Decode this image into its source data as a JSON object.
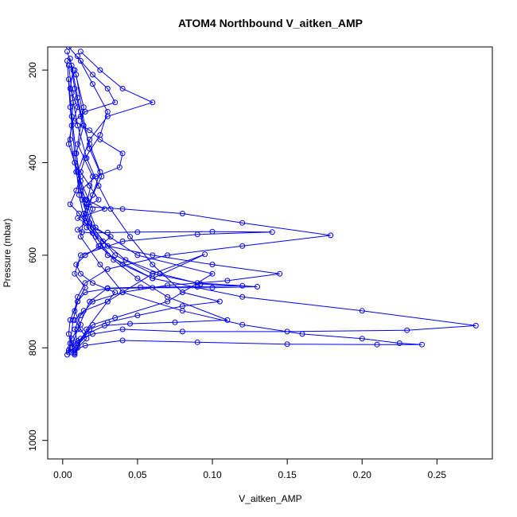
{
  "chart_data": {
    "type": "line",
    "title": "ATOM4 Northbound V_aitken_AMP",
    "xlabel": "V_aitken_AMP",
    "ylabel": "Pressure (mbar)",
    "xlim": [
      -0.01,
      0.287
    ],
    "ylim": [
      1040,
      150
    ],
    "y_reversed": true,
    "xticks": [
      0.0,
      0.05,
      0.1,
      0.15,
      0.2,
      0.25
    ],
    "xtick_labels": [
      "0.00",
      "0.05",
      "0.10",
      "0.15",
      "0.20",
      "0.25"
    ],
    "yticks": [
      200,
      400,
      600,
      800,
      1000
    ],
    "ytick_labels": [
      "200",
      "400",
      "600",
      "800",
      "1000"
    ],
    "grid": false,
    "legend": "none",
    "series_color": "#0000ff",
    "series": [
      {
        "x": [
          0.004,
          0.012,
          0.02,
          0.03,
          0.035,
          0.015,
          0.008,
          0.018,
          0.025,
          0.04,
          0.038,
          0.022,
          0.012,
          0.016,
          0.028,
          0.01,
          0.02,
          0.032,
          0.025,
          0.015,
          0.009,
          0.012,
          0.02,
          0.035,
          0.03,
          0.014,
          0.008,
          0.012,
          0.016,
          0.01,
          0.008
        ],
        "y": [
          150,
          180,
          210,
          240,
          270,
          290,
          310,
          330,
          350,
          380,
          410,
          430,
          460,
          480,
          500,
          520,
          540,
          560,
          580,
          600,
          620,
          640,
          660,
          680,
          700,
          720,
          740,
          760,
          780,
          800,
          815
        ]
      },
      {
        "x": [
          0.003,
          0.007,
          0.005,
          0.01,
          0.006,
          0.004,
          0.008,
          0.012,
          0.009,
          0.005,
          0.011,
          0.015,
          0.01,
          0.013,
          0.02,
          0.03,
          0.05,
          0.1,
          0.14,
          0.09,
          0.04,
          0.012,
          0.008,
          0.015,
          0.01,
          0.005,
          0.004,
          0.006,
          0.004,
          0.003
        ],
        "y": [
          160,
          200,
          240,
          280,
          320,
          360,
          400,
          430,
          460,
          490,
          510,
          530,
          545,
          550,
          552,
          551,
          550,
          549,
          550,
          555,
          570,
          600,
          640,
          670,
          700,
          740,
          770,
          790,
          805,
          815
        ]
      },
      {
        "x": [
          0.01,
          0.02,
          0.03,
          0.025,
          0.015,
          0.012,
          0.018,
          0.024,
          0.016,
          0.04,
          0.08,
          0.12,
          0.179,
          0.12,
          0.07,
          0.03,
          0.015,
          0.01,
          0.008,
          0.012,
          0.006,
          0.005,
          0.004
        ],
        "y": [
          170,
          230,
          290,
          340,
          390,
          420,
          450,
          480,
          495,
          500,
          510,
          530,
          557,
          580,
          600,
          630,
          660,
          690,
          720,
          750,
          780,
          800,
          810
        ]
      },
      {
        "x": [
          0.006,
          0.01,
          0.014,
          0.009,
          0.012,
          0.02,
          0.016,
          0.03,
          0.06,
          0.1,
          0.145,
          0.11,
          0.07,
          0.04,
          0.02,
          0.012,
          0.008,
          0.01,
          0.006
        ],
        "y": [
          190,
          260,
          320,
          380,
          440,
          500,
          540,
          580,
          600,
          620,
          640,
          655,
          665,
          680,
          700,
          730,
          760,
          790,
          810
        ]
      },
      {
        "x": [
          0.005,
          0.008,
          0.012,
          0.018,
          0.025,
          0.02,
          0.015,
          0.03,
          0.06,
          0.12,
          0.2,
          0.276,
          0.23,
          0.15,
          0.08,
          0.04,
          0.02,
          0.01,
          0.006
        ],
        "y": [
          175,
          240,
          300,
          360,
          420,
          470,
          520,
          600,
          650,
          690,
          720,
          752,
          762,
          765,
          765,
          760,
          770,
          785,
          800
        ]
      },
      {
        "x": [
          0.008,
          0.014,
          0.01,
          0.02,
          0.016,
          0.012,
          0.025,
          0.04,
          0.08,
          0.12,
          0.16,
          0.2,
          0.225,
          0.24,
          0.21,
          0.15,
          0.09,
          0.04,
          0.015,
          0.008
        ],
        "y": [
          200,
          280,
          360,
          430,
          490,
          560,
          620,
          680,
          720,
          750,
          770,
          780,
          790,
          793,
          793,
          792,
          788,
          784,
          795,
          805
        ]
      },
      {
        "x": [
          0.004,
          0.006,
          0.009,
          0.012,
          0.02,
          0.035,
          0.06,
          0.09,
          0.13,
          0.1,
          0.06,
          0.03,
          0.015,
          0.01,
          0.007,
          0.005
        ],
        "y": [
          220,
          300,
          380,
          460,
          540,
          600,
          640,
          660,
          668,
          670,
          670,
          672,
          680,
          700,
          740,
          790
        ]
      },
      {
        "x": [
          0.012,
          0.025,
          0.04,
          0.06,
          0.03,
          0.018,
          0.01,
          0.015,
          0.022,
          0.05,
          0.1,
          0.07,
          0.035,
          0.02,
          0.012,
          0.008
        ],
        "y": [
          160,
          200,
          240,
          270,
          300,
          350,
          420,
          480,
          540,
          600,
          640,
          700,
          735,
          750,
          780,
          810
        ]
      },
      {
        "x": [
          0.006,
          0.01,
          0.016,
          0.024,
          0.032,
          0.045,
          0.06,
          0.08,
          0.105,
          0.08,
          0.05,
          0.03,
          0.018,
          0.01
        ],
        "y": [
          250,
          320,
          390,
          450,
          500,
          560,
          620,
          680,
          700,
          710,
          730,
          745,
          760,
          790
        ]
      },
      {
        "x": [
          0.003,
          0.005,
          0.008,
          0.011,
          0.015,
          0.024,
          0.04,
          0.06,
          0.095,
          0.06,
          0.03,
          0.016,
          0.008
        ],
        "y": [
          180,
          280,
          380,
          470,
          530,
          580,
          620,
          650,
          598,
          640,
          700,
          760,
          812
        ]
      },
      {
        "x": [
          0.009,
          0.013,
          0.018,
          0.026,
          0.02,
          0.014,
          0.022,
          0.034,
          0.05,
          0.07,
          0.11,
          0.075,
          0.045,
          0.028,
          0.016,
          0.009
        ],
        "y": [
          210,
          290,
          370,
          430,
          470,
          510,
          560,
          610,
          650,
          690,
          740,
          745,
          748,
          752,
          770,
          800
        ]
      },
      {
        "x": [
          0.004,
          0.007,
          0.005,
          0.009,
          0.013,
          0.018,
          0.027,
          0.042,
          0.065,
          0.092,
          0.12,
          0.09,
          0.052,
          0.03,
          0.018,
          0.01,
          0.006
        ],
        "y": [
          190,
          270,
          350,
          420,
          480,
          530,
          570,
          610,
          640,
          662,
          666,
          668,
          669,
          671,
          700,
          760,
          800
        ]
      }
    ]
  }
}
